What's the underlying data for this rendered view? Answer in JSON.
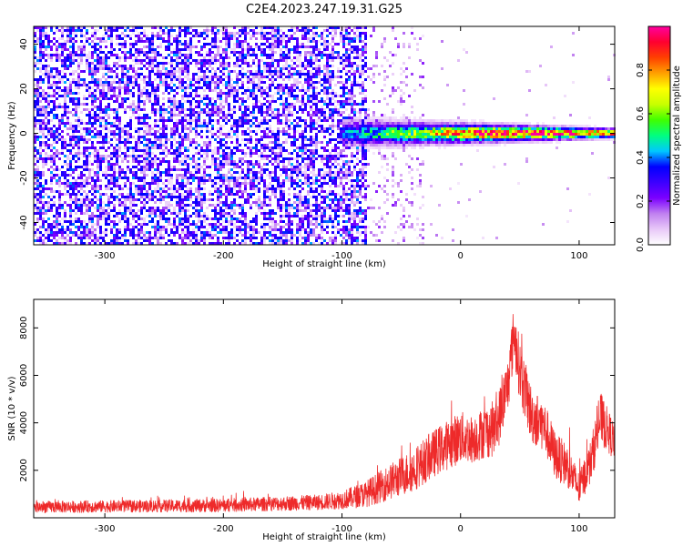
{
  "title": "C2E4.2023.247.19.31.G25",
  "chart_data": [
    {
      "type": "heatmap",
      "xlabel": "Height of straight line (km)",
      "ylabel": "Frequency (Hz)",
      "xlim": [
        -360,
        130
      ],
      "ylim": [
        -50,
        48
      ],
      "xticks": [
        -300,
        -200,
        -100,
        0,
        100
      ],
      "yticks": [
        -40,
        -20,
        0,
        20,
        40
      ],
      "grid": false,
      "description_of_pattern": "",
      "colorbar": {
        "label": "Normalized spectral amplitude",
        "range": [
          0.0,
          1.0
        ],
        "ticks": [
          0.0,
          0.2,
          0.4,
          0.6,
          0.8
        ],
        "colormap": [
          "#ffffff",
          "#e8c8f8",
          "#c080f0",
          "#7b00ff",
          "#3c00ff",
          "#0000ff",
          "#00c8ff",
          "#00ff80",
          "#40ff00",
          "#c8ff00",
          "#ffff00",
          "#ffa000",
          "#ff4000",
          "#ff0030",
          "#ff00a0"
        ]
      },
      "features": {
        "noise_region_x": [
          -360,
          -80
        ],
        "sparse_region_x": [
          -80,
          -30
        ],
        "signal_band": {
          "x": [
            -100,
            130
          ],
          "center_frequency_hz": 0,
          "halfwidth_hz": [
            6,
            2
          ],
          "peak_amplitude": 0.9
        }
      }
    },
    {
      "type": "line",
      "xlabel": "Height of straight line (km)",
      "ylabel": "SNR (10 * v/v)",
      "xlim": [
        -360,
        130
      ],
      "ylim": [
        0,
        9200
      ],
      "xticks": [
        -300,
        -200,
        -100,
        0,
        100
      ],
      "yticks": [
        2000,
        4000,
        6000,
        8000
      ],
      "grid": false,
      "series": [
        {
          "color": "#ee2a2a",
          "envelope": {
            "x": [
              -360,
              -300,
              -200,
              -120,
              -100,
              -80,
              -60,
              -40,
              -20,
              0,
              10,
              20,
              30,
              40,
              45,
              50,
              60,
              70,
              80,
              90,
              100,
              110,
              118,
              125,
              130
            ],
            "mean": [
              450,
              480,
              520,
              650,
              750,
              1000,
              1500,
              2000,
              2800,
              3400,
              3300,
              3600,
              3800,
              5600,
              7800,
              6200,
              4300,
              3900,
              2600,
              2200,
              1200,
              2400,
              4200,
              3600,
              3200
            ],
            "spread": [
              250,
              250,
              280,
              320,
              380,
              550,
              750,
              900,
              1000,
              1100,
              1000,
              1100,
              1200,
              1200,
              1200,
              1300,
              1200,
              1100,
              1000,
              900,
              700,
              900,
              1100,
              900,
              800
            ]
          }
        }
      ]
    }
  ]
}
